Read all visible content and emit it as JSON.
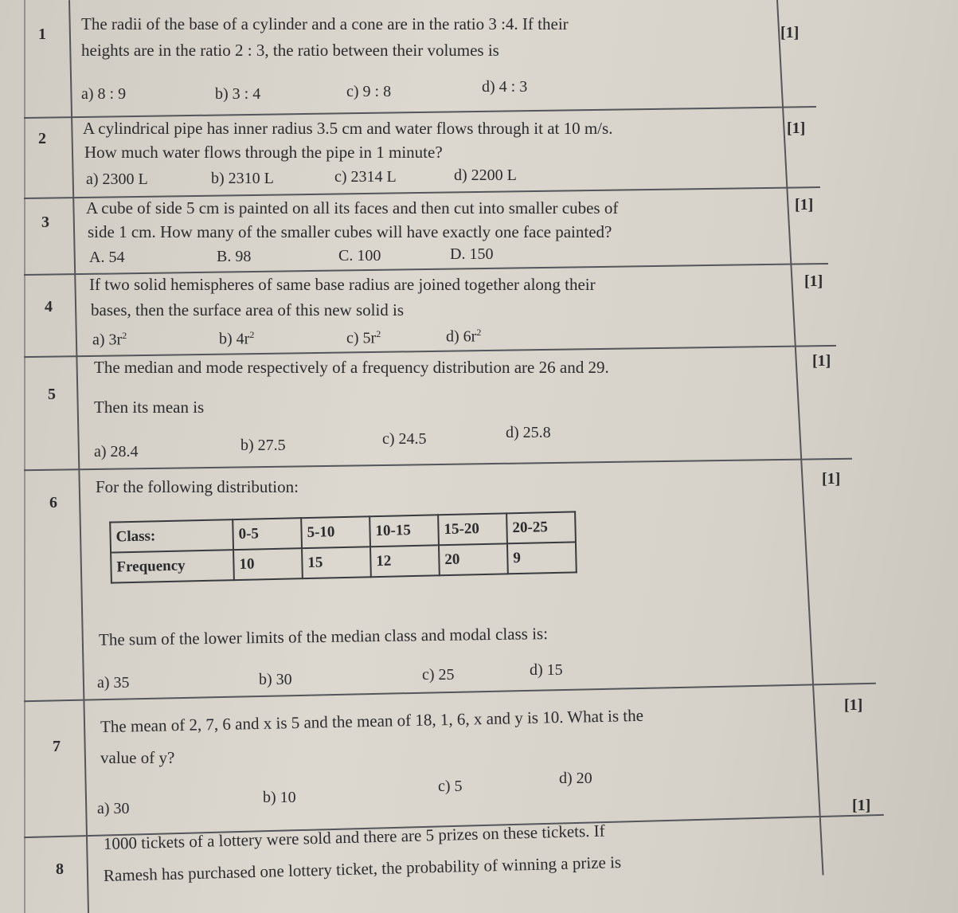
{
  "questions": [
    {
      "number": "1",
      "marks": "[1]",
      "text": [
        "The radii of the base of a cylinder and a cone are in the ratio 3 :4. If their",
        "heights are in the ratio 2 : 3, the ratio between their volumes is"
      ],
      "options": [
        "a) 8 : 9",
        "b) 3 : 4",
        "c) 9 : 8",
        "d) 4 : 3"
      ]
    },
    {
      "number": "2",
      "marks": "[1]",
      "text": [
        "A cylindrical pipe has inner radius 3.5 cm and water flows through it at 10 m/s.",
        "How much water flows through the pipe in 1 minute?"
      ],
      "options": [
        "a) 2300 L",
        "b) 2310 L",
        "c)  2314 L",
        "d) 2200 L"
      ]
    },
    {
      "number": "3",
      "marks": "[1]",
      "text": [
        "A cube of side 5 cm is painted on all its faces and then cut into smaller cubes of",
        "side 1 cm. How many of the smaller cubes will have exactly one face painted?"
      ],
      "options": [
        "A. 54",
        "B. 98",
        "C. 100",
        "D. 150"
      ]
    },
    {
      "number": "4",
      "marks": "[1]",
      "text": [
        "If two solid hemispheres of same base radius are joined together along their",
        "bases, then the surface area of this new solid is"
      ],
      "options": [
        "a) 3r",
        "b) 4r",
        "c) 5r",
        "d) 6r"
      ],
      "option_exponent": "2"
    },
    {
      "number": "5",
      "marks": "[1]",
      "text": [
        "The median and mode respectively of a frequency distribution are 26 and 29.",
        "Then its mean is"
      ],
      "options": [
        "a) 28.4",
        "b) 27.5",
        "c) 24.5",
        "d) 25.8"
      ]
    },
    {
      "number": "6",
      "marks": "[1]",
      "text": [
        "For the following distribution:",
        "The sum of the lower limits of the median class and modal class is:"
      ],
      "options": [
        "a) 35",
        "b) 30",
        "c) 25",
        "d) 15"
      ],
      "table": {
        "rows": [
          [
            "Class:",
            "0-5",
            "5-10",
            "10-15",
            "15-20",
            "20-25"
          ],
          [
            "Frequency",
            "10",
            "15",
            "12",
            "20",
            "9"
          ]
        ]
      }
    },
    {
      "number": "7",
      "marks": "[1]",
      "text": [
        "The mean of 2, 7, 6 and x is 5 and the mean of 18, 1, 6, x and y is 10. What is the",
        "value of y?"
      ],
      "options": [
        "a) 30",
        "b) 10",
        "c) 5",
        "d) 20"
      ]
    },
    {
      "number": "8",
      "marks": "[1]",
      "text": [
        "1000 tickets of a lottery were sold and there are 5 prizes on these tickets. If",
        "Ramesh has purchased one lottery ticket, the probability of winning a prize is"
      ],
      "options": []
    }
  ]
}
